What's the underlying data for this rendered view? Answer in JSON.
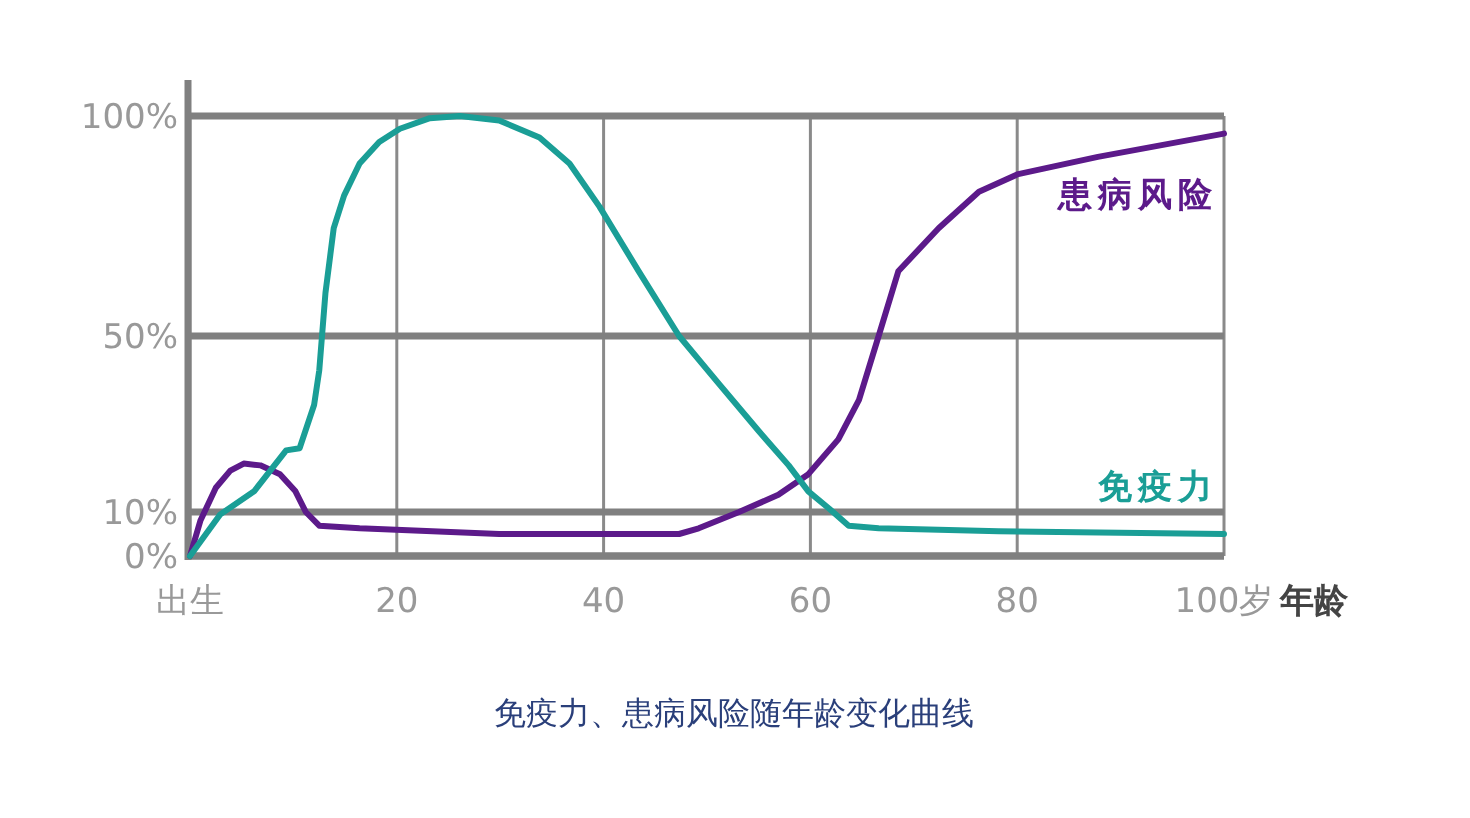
{
  "chart_data": {
    "type": "line",
    "title": "免疫力、患病风险随年龄变化曲线",
    "xlabel": "年龄",
    "xlim": [
      0,
      100
    ],
    "ylim": [
      0,
      100
    ],
    "xticks": [
      {
        "value": 0,
        "label": "出生"
      },
      20,
      40,
      60,
      80,
      {
        "value": 100,
        "label": "100岁"
      }
    ],
    "yticks": [
      {
        "value": 0,
        "label": "0%"
      },
      {
        "value": 10,
        "label": "10%"
      },
      {
        "value": 50,
        "label": "50%"
      },
      {
        "value": 100,
        "label": "100%"
      }
    ],
    "grid": true,
    "series": [
      {
        "name": "患病风险",
        "color": "#5c1a8a",
        "x": [
          0,
          1,
          2.5,
          3.9,
          5.2,
          6.8,
          8.7,
          10.2,
          11.2,
          12.5,
          16.4,
          29.9,
          47.3,
          49.2,
          53.1,
          56.9,
          59.8,
          62.7,
          64.7,
          66.6,
          68.5,
          72.4,
          76.3,
          80.1,
          87.8,
          100
        ],
        "values": [
          0,
          8,
          15.5,
          19.4,
          21,
          20.6,
          18.6,
          14.7,
          10,
          6.9,
          6.3,
          5,
          5,
          6.3,
          10,
          13.9,
          18.6,
          26.5,
          35.5,
          50,
          64.7,
          74.5,
          82.8,
          86.8,
          90.7,
          96
        ]
      },
      {
        "name": "免疫力",
        "color": "#1a9e96",
        "x": [
          0,
          2.9,
          6.2,
          9.3,
          10.6,
          12,
          12.5,
          13.1,
          13.9,
          14.9,
          16.4,
          18.3,
          20.3,
          23.2,
          26.1,
          29.9,
          33.8,
          36.7,
          39.6,
          43.4,
          47.3,
          51.2,
          55,
          57.9,
          59.8,
          61.8,
          63.7,
          66.6,
          78.2,
          100
        ],
        "values": [
          0,
          9.4,
          14.7,
          24,
          24.5,
          34.3,
          42.2,
          59.8,
          74.5,
          81.9,
          89.2,
          94.1,
          97.1,
          99.5,
          100,
          99,
          95.1,
          89.2,
          79.4,
          64.7,
          50,
          39,
          28.4,
          20.6,
          14.7,
          10.8,
          6.9,
          6.3,
          5.6,
          5
        ]
      }
    ]
  }
}
